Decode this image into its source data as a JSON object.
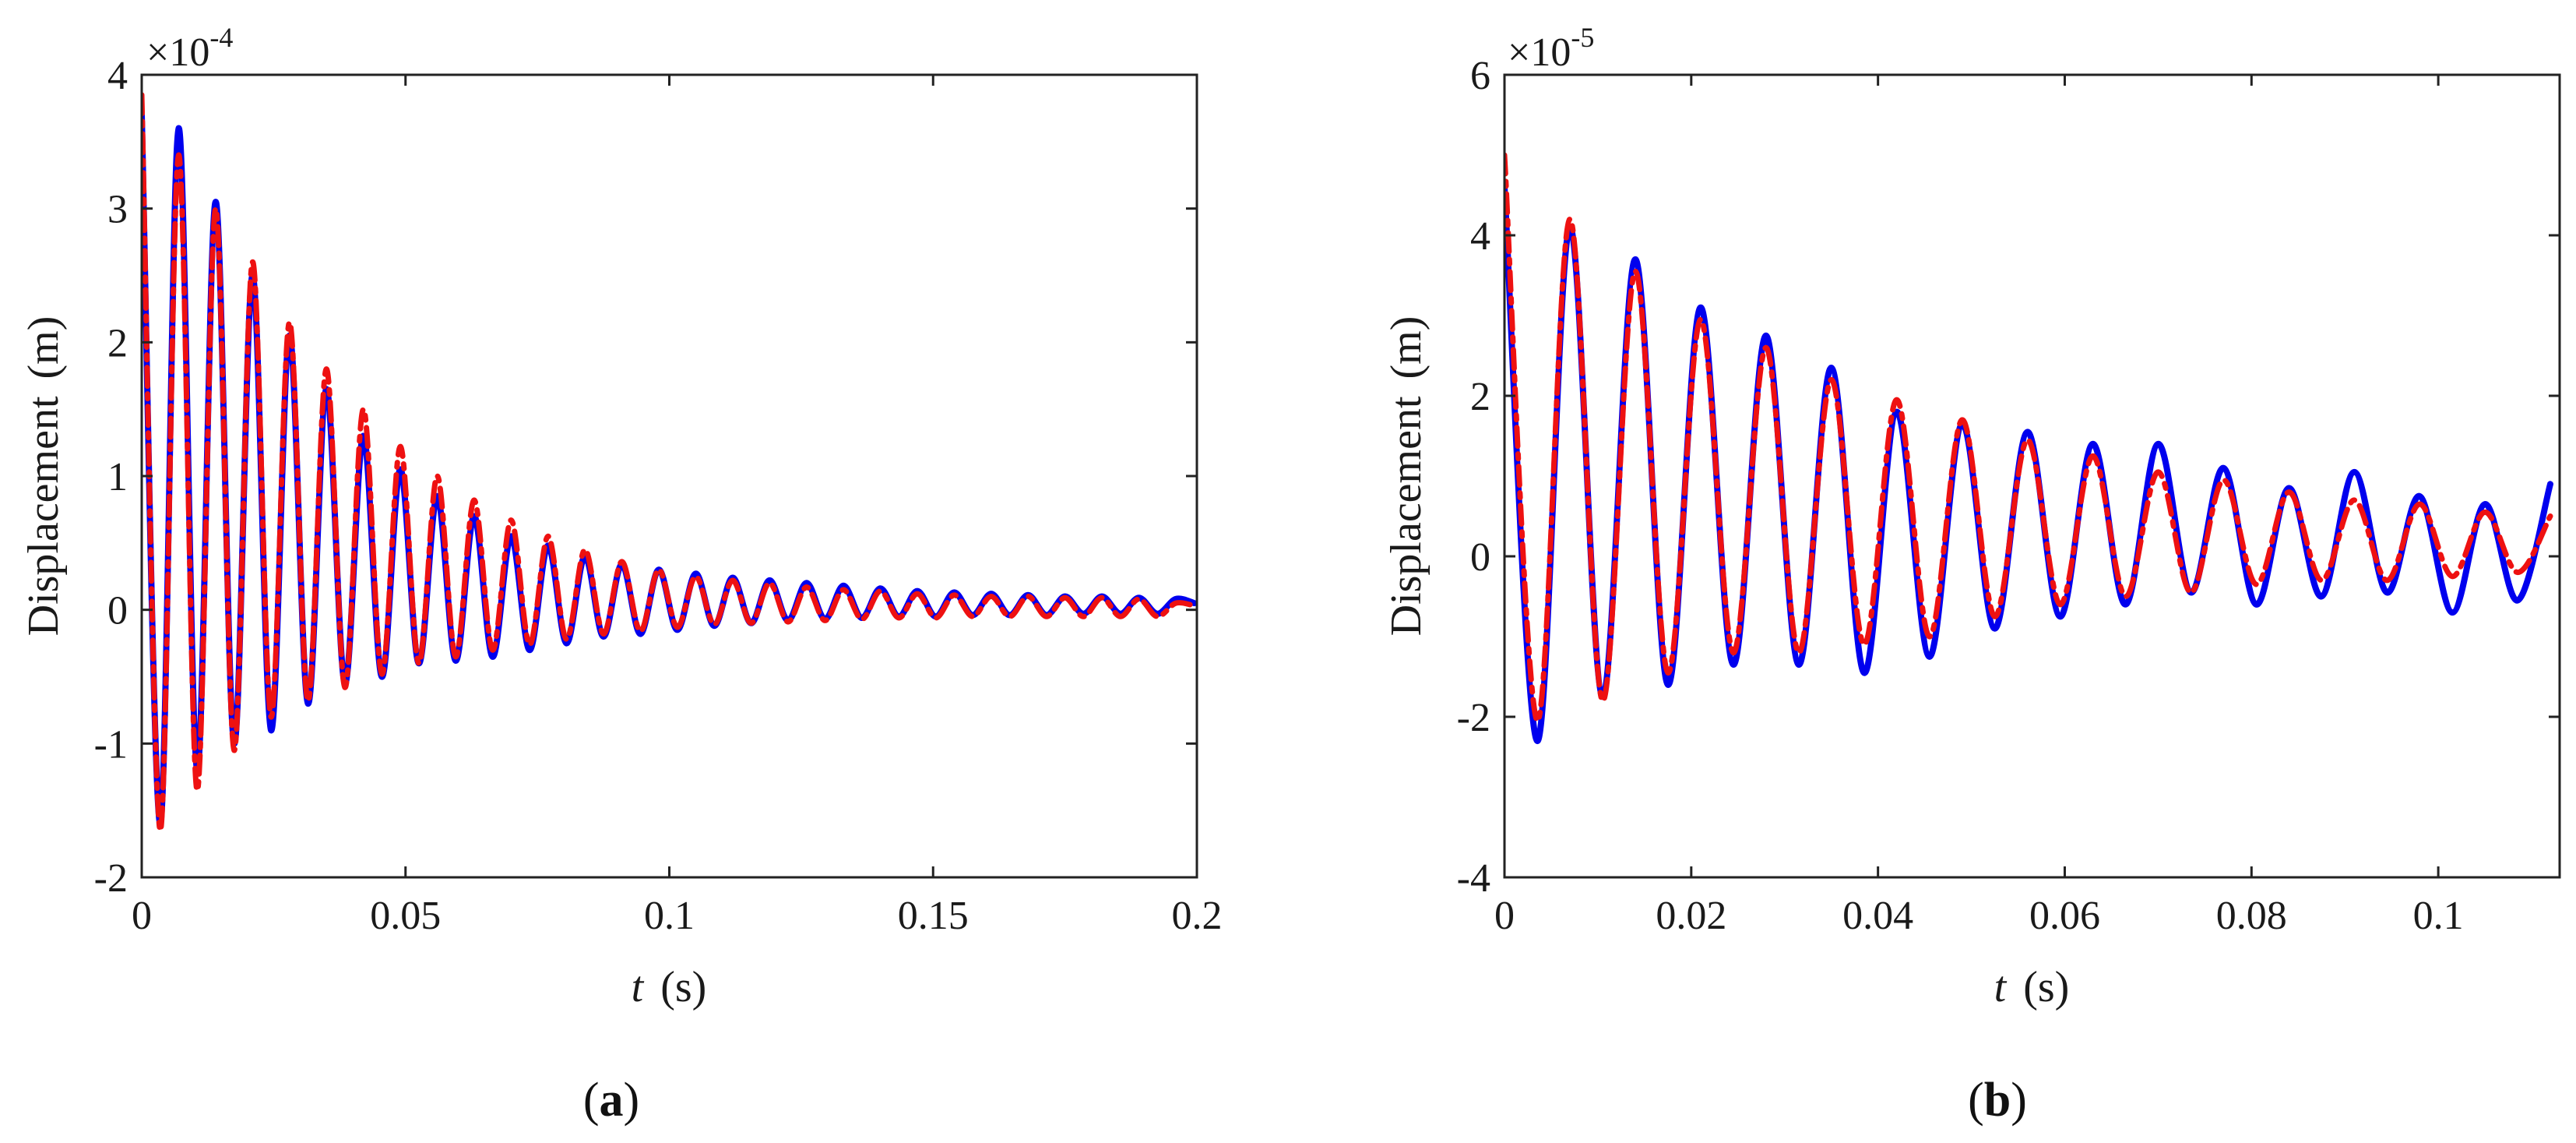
{
  "chart_data": [
    {
      "type": "line",
      "panel_label": "a",
      "xlabel": "t",
      "xunit": "(s)",
      "ylabel": "Displacement",
      "yunit": "(m)",
      "y_exponent_label": "×10",
      "y_exponent": "-4",
      "y_scale": 0.0001,
      "xlim": [
        0,
        0.2
      ],
      "ylim": [
        -2,
        4
      ],
      "xticks": [
        0,
        0.05,
        0.1,
        0.15,
        0.2
      ],
      "xtick_labels": [
        "0",
        "0.05",
        "0.1",
        "0.15",
        "0.2"
      ],
      "yticks": [
        -2,
        -1,
        0,
        1,
        2,
        3,
        4
      ],
      "ytick_labels": [
        "-2",
        "-1",
        "0",
        "1",
        "2",
        "3",
        "4"
      ],
      "grid": false,
      "series": [
        {
          "color": "#0000ee",
          "style": "solid",
          "x": [
            0,
            0.0035,
            0.007,
            0.0105,
            0.014,
            0.0175,
            0.021,
            0.0245,
            0.028,
            0.0315,
            0.035,
            0.0385,
            0.042,
            0.0455,
            0.049,
            0.0525,
            0.056,
            0.0595,
            0.063,
            0.0665,
            0.07,
            0.0735,
            0.077,
            0.0805,
            0.084,
            0.0875,
            0.091,
            0.0945,
            0.098,
            0.1015,
            0.105,
            0.1085,
            0.112,
            0.1155,
            0.119,
            0.1225,
            0.126,
            0.1295,
            0.133,
            0.1365,
            0.14,
            0.1435,
            0.147,
            0.1505,
            0.154,
            0.1575,
            0.161,
            0.1645,
            0.168,
            0.1715,
            0.175,
            0.1785,
            0.182,
            0.1855,
            0.189,
            0.1925,
            0.196,
            0.1995
          ],
          "y": [
            3.7,
            -1.6,
            3.6,
            -1.2,
            3.05,
            -1.0,
            2.5,
            -0.9,
            2.05,
            -0.7,
            1.65,
            -0.55,
            1.3,
            -0.5,
            1.05,
            -0.4,
            0.85,
            -0.38,
            0.7,
            -0.35,
            0.55,
            -0.3,
            0.48,
            -0.25,
            0.4,
            -0.2,
            0.34,
            -0.18,
            0.3,
            -0.15,
            0.27,
            -0.12,
            0.24,
            -0.1,
            0.22,
            -0.08,
            0.2,
            -0.07,
            0.18,
            -0.06,
            0.16,
            -0.05,
            0.14,
            -0.05,
            0.13,
            -0.04,
            0.12,
            -0.04,
            0.11,
            -0.04,
            0.1,
            -0.03,
            0.1,
            -0.03,
            0.09,
            -0.03,
            0.08,
            0.05
          ]
        },
        {
          "color": "#ee1111",
          "style": "dash-dot",
          "x": [
            0,
            0.0035,
            0.007,
            0.0105,
            0.014,
            0.0175,
            0.021,
            0.0245,
            0.028,
            0.0315,
            0.035,
            0.0385,
            0.042,
            0.0455,
            0.049,
            0.0525,
            0.056,
            0.0595,
            0.063,
            0.0665,
            0.07,
            0.0735,
            0.077,
            0.0805,
            0.084,
            0.0875,
            0.091,
            0.0945,
            0.098,
            0.1015,
            0.105,
            0.1085,
            0.112,
            0.1155,
            0.119,
            0.1225,
            0.126,
            0.1295,
            0.133,
            0.1365,
            0.14,
            0.1435,
            0.147,
            0.1505,
            0.154,
            0.1575,
            0.161,
            0.1645,
            0.168,
            0.1715,
            0.175,
            0.1785,
            0.182,
            0.1855,
            0.189,
            0.1925,
            0.196,
            0.1995
          ],
          "y": [
            3.85,
            -1.65,
            3.4,
            -1.35,
            3.0,
            -1.05,
            2.6,
            -0.8,
            2.15,
            -0.68,
            1.8,
            -0.58,
            1.5,
            -0.48,
            1.22,
            -0.4,
            1.0,
            -0.35,
            0.82,
            -0.3,
            0.67,
            -0.26,
            0.55,
            -0.22,
            0.45,
            -0.18,
            0.36,
            -0.16,
            0.3,
            -0.13,
            0.25,
            -0.11,
            0.22,
            -0.1,
            0.2,
            -0.09,
            0.17,
            -0.08,
            0.15,
            -0.07,
            0.14,
            -0.06,
            0.12,
            -0.06,
            0.11,
            -0.05,
            0.1,
            -0.05,
            0.1,
            -0.05,
            0.09,
            -0.05,
            0.09,
            -0.05,
            0.08,
            -0.05,
            0.05,
            0.03
          ]
        }
      ]
    },
    {
      "type": "line",
      "panel_label": "b",
      "xlabel": "t",
      "xunit": "(s)",
      "ylabel": "Displacement",
      "yunit": "(m)",
      "y_exponent_label": "×10",
      "y_exponent": "-5",
      "y_scale": 1e-05,
      "xlim": [
        0,
        0.113
      ],
      "ylim": [
        -4,
        6
      ],
      "xticks": [
        0,
        0.02,
        0.04,
        0.06,
        0.08,
        0.1
      ],
      "xtick_labels": [
        "0",
        "0.02",
        "0.04",
        "0.06",
        "0.08",
        "0.1"
      ],
      "yticks": [
        -4,
        -2,
        0,
        2,
        4,
        6
      ],
      "ytick_labels": [
        "-4",
        "-2",
        "0",
        "2",
        "4",
        "6"
      ],
      "grid": false,
      "series": [
        {
          "color": "#0000ee",
          "style": "solid",
          "x": [
            0,
            0.0035,
            0.007,
            0.0105,
            0.014,
            0.0175,
            0.021,
            0.0245,
            0.028,
            0.0315,
            0.035,
            0.0385,
            0.042,
            0.0455,
            0.049,
            0.0525,
            0.056,
            0.0595,
            0.063,
            0.0665,
            0.07,
            0.0735,
            0.077,
            0.0805,
            0.084,
            0.0875,
            0.091,
            0.0945,
            0.098,
            0.1015,
            0.105,
            0.1085,
            0.112
          ],
          "y": [
            4.6,
            -2.3,
            4.1,
            -1.75,
            3.7,
            -1.6,
            3.1,
            -1.35,
            2.75,
            -1.35,
            2.35,
            -1.45,
            1.8,
            -1.25,
            1.65,
            -0.9,
            1.55,
            -0.75,
            1.4,
            -0.6,
            1.4,
            -0.45,
            1.1,
            -0.6,
            0.85,
            -0.5,
            1.05,
            -0.45,
            0.75,
            -0.7,
            0.65,
            -0.55,
            0.9
          ]
        },
        {
          "color": "#ee1111",
          "style": "dash-dot",
          "x": [
            0,
            0.0035,
            0.007,
            0.0105,
            0.014,
            0.0175,
            0.021,
            0.0245,
            0.028,
            0.0315,
            0.035,
            0.0385,
            0.042,
            0.0455,
            0.049,
            0.0525,
            0.056,
            0.0595,
            0.063,
            0.0665,
            0.07,
            0.0735,
            0.077,
            0.0805,
            0.084,
            0.0875,
            0.091,
            0.0945,
            0.098,
            0.1015,
            0.105,
            0.1085,
            0.112
          ],
          "y": [
            5.0,
            -2.05,
            4.2,
            -1.8,
            3.55,
            -1.45,
            2.95,
            -1.2,
            2.6,
            -1.2,
            2.2,
            -1.1,
            1.95,
            -1.0,
            1.7,
            -0.75,
            1.45,
            -0.6,
            1.25,
            -0.5,
            1.05,
            -0.45,
            0.95,
            -0.35,
            0.8,
            -0.3,
            0.7,
            -0.3,
            0.65,
            -0.25,
            0.55,
            -0.2,
            0.5
          ]
        }
      ]
    }
  ]
}
